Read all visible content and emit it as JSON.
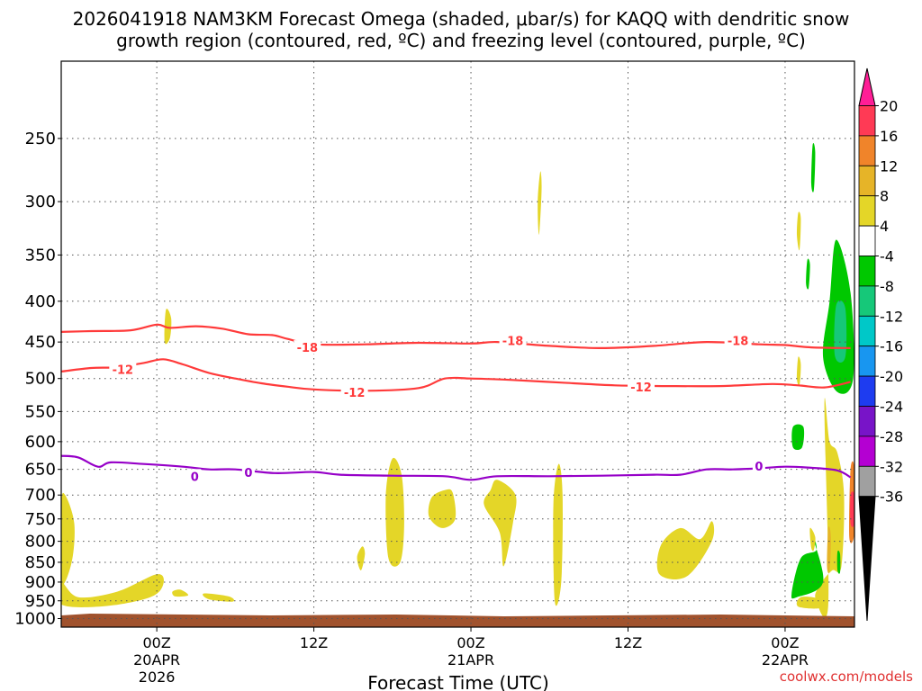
{
  "chart_data": {
    "type": "time-height",
    "title_line1": "2026041918 NAM3KM Forecast Omega (shaded, μbar/s) for KAQQ with dendritic snow",
    "title_line2": "growth region (contoured, red, ºC) and freezing level (contoured, purple, ºC)",
    "xlabel": "Forecast Time (UTC)",
    "credit": "coolwx.com/models",
    "xlim_hours": [
      -7.3,
      53.3
    ],
    "ylim_hpa": [
      1025,
      200
    ],
    "y_ticks": [
      250,
      300,
      350,
      400,
      450,
      500,
      550,
      600,
      650,
      700,
      750,
      800,
      850,
      900,
      950,
      1000
    ],
    "x_ticks": [
      {
        "hour": 0,
        "lines": [
          "00Z",
          "20APR",
          "2026"
        ]
      },
      {
        "hour": 12,
        "lines": [
          "12Z"
        ]
      },
      {
        "hour": 24,
        "lines": [
          "00Z",
          "21APR"
        ]
      },
      {
        "hour": 36,
        "lines": [
          "12Z"
        ]
      },
      {
        "hour": 48,
        "lines": [
          "00Z",
          "22APR"
        ]
      }
    ],
    "colorbar": {
      "labels": [
        "20",
        "16",
        "12",
        "8",
        "4",
        "-4",
        "-8",
        "-12",
        "-16",
        "-20",
        "-24",
        "-28",
        "-32",
        "-36"
      ],
      "colors": [
        "#ff3a55",
        "#f0842a",
        "#e6b428",
        "#e4d628",
        "#ffffff",
        "#00c800",
        "#16c879",
        "#00c8c8",
        "#1896f0",
        "#1e3cf0",
        "#7814c8",
        "#b400d2",
        "#a0a0a0"
      ],
      "top_arrow_color": "#ff1e96",
      "bottom_arrow_color": "#000000"
    },
    "contours": [
      {
        "label": "-18",
        "color": "#ff3a3a",
        "hours": [
          -7.3,
          -5,
          -2,
          0,
          1,
          3,
          5,
          7,
          8.8,
          10,
          12,
          16,
          20,
          24,
          26,
          30,
          34,
          38,
          42,
          46,
          48,
          50,
          53
        ],
        "hpa": [
          437,
          436,
          435,
          428,
          432,
          430,
          433,
          440,
          441,
          446,
          453,
          453,
          451,
          452,
          450,
          455,
          458,
          455,
          450,
          453,
          454,
          457,
          458
        ],
        "label_pos": [
          [
            11.5,
            457
          ],
          [
            27.2,
            448
          ],
          [
            44.4,
            448
          ]
        ]
      },
      {
        "label": "-12",
        "color": "#ff3a3a",
        "hours": [
          -7.3,
          -5,
          -3,
          -1,
          0.5,
          2,
          4,
          6,
          8,
          10,
          12,
          16,
          20,
          22,
          24,
          27,
          31,
          35,
          39,
          43,
          47,
          49,
          51,
          53
        ],
        "hpa": [
          490,
          485,
          484,
          478,
          473,
          480,
          492,
          500,
          507,
          512,
          516,
          518,
          514,
          500,
          500,
          502,
          506,
          510,
          511,
          511,
          508,
          510,
          513,
          505
        ],
        "label_pos": [
          [
            -2.6,
            487
          ],
          [
            15.1,
            520
          ],
          [
            37.0,
            512
          ]
        ]
      },
      {
        "label": "0",
        "color": "#9600c8",
        "hours": [
          -7.3,
          -6,
          -4.5,
          -3.5,
          -1,
          2,
          4,
          6,
          9,
          12,
          14,
          18,
          22,
          24,
          26,
          30,
          34,
          38,
          40,
          42,
          44,
          46,
          48,
          50,
          52,
          53
        ],
        "hpa": [
          625,
          628,
          645,
          637,
          640,
          645,
          650,
          650,
          657,
          655,
          660,
          662,
          663,
          670,
          663,
          663,
          662,
          660,
          660,
          650,
          650,
          648,
          645,
          647,
          652,
          665
        ],
        "label_pos": [
          [
            7.0,
            656
          ],
          [
            2.9,
            663
          ],
          [
            46.0,
            644
          ]
        ]
      }
    ],
    "omega_regions": [
      {
        "value": 4,
        "color": "#e4d628",
        "hours": [
          -7.3,
          -7,
          -6.3,
          -6.5,
          -7.3
        ],
        "hpa": [
          720,
          700,
          760,
          850,
          900
        ]
      },
      {
        "value": 4,
        "color": "#e4d628",
        "hours": [
          -7.3,
          -6,
          -3,
          0,
          0.5,
          -0.5,
          -4,
          -7.3
        ],
        "hpa": [
          900,
          940,
          925,
          880,
          905,
          940,
          965,
          960
        ]
      },
      {
        "value": 4,
        "color": "#e4d628",
        "hours": [
          1.2,
          1.8,
          2.4,
          1.4
        ],
        "hpa": [
          925,
          920,
          935,
          938
        ]
      },
      {
        "value": 4,
        "color": "#e4d628",
        "hours": [
          3.6,
          5.5,
          5.8,
          4.0
        ],
        "hpa": [
          930,
          938,
          952,
          946
        ]
      },
      {
        "value": 4,
        "color": "#e4d628",
        "hours": [
          0.7,
          1.1,
          1.0,
          0.6
        ],
        "hpa": [
          410,
          420,
          445,
          450
        ]
      },
      {
        "value": 4,
        "color": "#e4d628",
        "hours": [
          18.0,
          18.7,
          18.9,
          18.6,
          17.7,
          17.5
        ],
        "hpa": [
          630,
          660,
          760,
          850,
          840,
          700
        ]
      },
      {
        "value": 4,
        "color": "#e4d628",
        "hours": [
          22.0,
          22.6,
          22.8,
          21.8,
          20.8,
          21.0
        ],
        "hpa": [
          690,
          695,
          750,
          770,
          745,
          705
        ]
      },
      {
        "value": 4,
        "color": "#e4d628",
        "hours": [
          26.0,
          27.4,
          27.2,
          26.5,
          26.2,
          25.0,
          25.5
        ],
        "hpa": [
          670,
          700,
          760,
          860,
          780,
          720,
          690
        ]
      },
      {
        "value": 4,
        "color": "#e4d628",
        "hours": [
          30.7,
          31.0,
          30.9,
          30.4,
          30.3
        ],
        "hpa": [
          640,
          700,
          900,
          950,
          720
        ]
      },
      {
        "value": 4,
        "color": "#e4d628",
        "hours": [
          15.7,
          15.9,
          15.6,
          15.3
        ],
        "hpa": [
          812,
          830,
          870,
          838
        ]
      },
      {
        "value": 4,
        "color": "#e4d628",
        "hours": [
          29.3,
          29.4,
          29.2,
          29.1
        ],
        "hpa": [
          275,
          290,
          330,
          300
        ]
      },
      {
        "value": 4,
        "color": "#e4d628",
        "hours": [
          38.5,
          40.0,
          41.5,
          42.4,
          42.4,
          40.5,
          38.4
        ],
        "hpa": [
          810,
          770,
          795,
          755,
          800,
          885,
          880
        ]
      },
      {
        "value": 4,
        "color": "#e4d628",
        "hours": [
          51.0,
          51.4,
          52.0,
          52.5,
          52.3,
          51.6,
          50.8,
          50.3,
          51.3
        ],
        "hpa": [
          540,
          600,
          620,
          700,
          860,
          870,
          900,
          940,
          960
        ]
      },
      {
        "value": 4,
        "color": "#e4d628",
        "hours": [
          49.2,
          50.6,
          50.7,
          49.0
        ],
        "hpa": [
          940,
          945,
          970,
          966
        ]
      },
      {
        "value": 4,
        "color": "#e4d628",
        "hours": [
          49.0,
          49.2,
          49.1,
          48.9
        ],
        "hpa": [
          310,
          315,
          345,
          330
        ]
      },
      {
        "value": 4,
        "color": "#e4d628",
        "hours": [
          49.0,
          49.2,
          49.1,
          48.9
        ],
        "hpa": [
          470,
          480,
          510,
          500
        ]
      },
      {
        "value": -4,
        "color": "#00c800",
        "hours": [
          51.9,
          53.0,
          53.2,
          52.0,
          50.9,
          51.4
        ],
        "hpa": [
          335,
          390,
          500,
          520,
          470,
          400
        ]
      },
      {
        "value": -4,
        "color": "#00c800",
        "hours": [
          49.2,
          50.4,
          50.0,
          50.9,
          48.9,
          48.5
        ],
        "hpa": [
          840,
          820,
          780,
          900,
          940,
          930
        ]
      },
      {
        "value": 4,
        "color": "#e4d628",
        "hours": [
          49.9,
          50.3,
          50.2,
          50.0
        ],
        "hpa": [
          770,
          790,
          820,
          815
        ]
      },
      {
        "value": -4,
        "color": "#00c800",
        "hours": [
          50.1,
          50.3,
          50.2,
          50.0
        ],
        "hpa": [
          255,
          260,
          290,
          285
        ]
      },
      {
        "value": -4,
        "color": "#00c800",
        "hours": [
          48.6,
          49.4,
          49.3,
          48.6
        ],
        "hpa": [
          575,
          575,
          610,
          610
        ]
      },
      {
        "value": -4,
        "color": "#00c800",
        "hours": [
          49.7,
          49.9,
          49.8,
          49.6
        ],
        "hpa": [
          355,
          360,
          385,
          380
        ]
      },
      {
        "value": -4,
        "color": "#00c800",
        "hours": [
          52.0,
          52.2,
          52.2,
          52.0
        ],
        "hpa": [
          825,
          830,
          875,
          870
        ]
      },
      {
        "value": -8,
        "color": "#16c879",
        "hours": [
          51.9,
          52.6,
          52.6,
          51.8
        ],
        "hpa": [
          405,
          408,
          470,
          468
        ]
      },
      {
        "value": 8,
        "color": "#e6b428",
        "hours": [
          51.3,
          51.5,
          51.4,
          51.2
        ],
        "hpa": [
          770,
          790,
          870,
          860
        ]
      },
      {
        "value": 12,
        "color": "#f0842a",
        "hours": [
          53.0,
          53.3,
          53.3,
          52.9
        ],
        "hpa": [
          650,
          650,
          780,
          790
        ]
      },
      {
        "value": 16,
        "color": "#ff3a55",
        "hours": [
          53.0,
          53.3,
          53.3,
          53.0
        ],
        "hpa": [
          700,
          700,
          760,
          760
        ]
      }
    ]
  }
}
